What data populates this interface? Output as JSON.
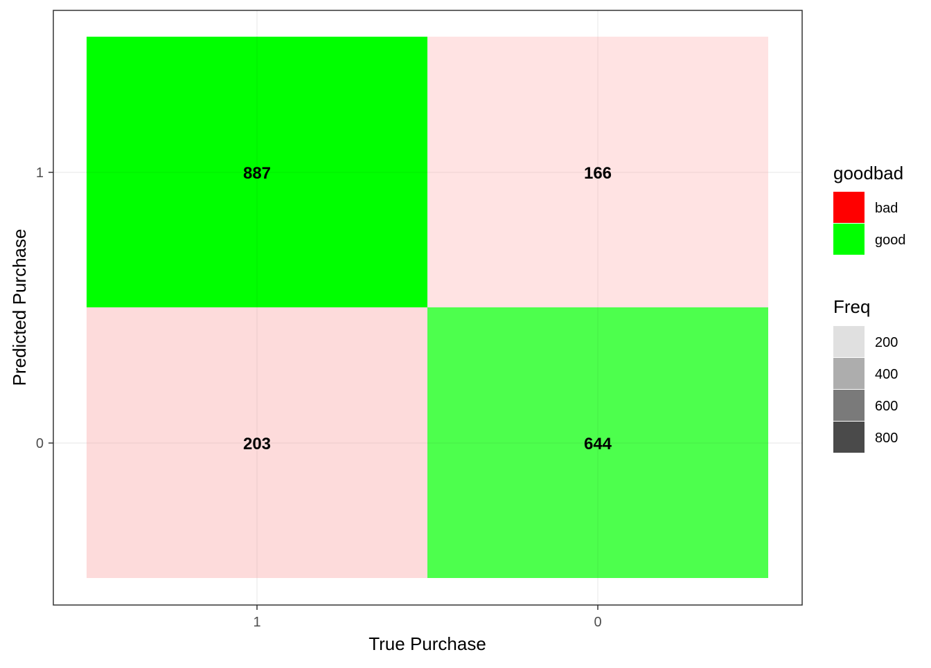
{
  "chart_data": {
    "type": "heatmap",
    "title": "",
    "xlabel": "True Purchase",
    "ylabel": "Predicted Purchase",
    "x_categories": [
      "1",
      "0"
    ],
    "y_categories": [
      "1",
      "0"
    ],
    "grid": true,
    "legend_position": "right",
    "cells": [
      {
        "true": "1",
        "predicted": "1",
        "freq": 887,
        "goodbad": "good"
      },
      {
        "true": "0",
        "predicted": "1",
        "freq": 166,
        "goodbad": "bad"
      },
      {
        "true": "1",
        "predicted": "0",
        "freq": 203,
        "goodbad": "bad"
      },
      {
        "true": "0",
        "predicted": "0",
        "freq": 644,
        "goodbad": "good"
      }
    ],
    "fill_legend": {
      "title": "goodbad",
      "entries": [
        {
          "label": "bad",
          "color": "#ff0000"
        },
        {
          "label": "good",
          "color": "#00ff00"
        }
      ]
    },
    "alpha_legend": {
      "title": "Freq",
      "entries": [
        {
          "label": "200",
          "color": "#e0e0e0"
        },
        {
          "label": "400",
          "color": "#adadad"
        },
        {
          "label": "600",
          "color": "#7a7a7a"
        },
        {
          "label": "800",
          "color": "#4a4a4a"
        }
      ]
    },
    "cell_colors": {
      "887": "#00ff00",
      "166": "#ffe3e3",
      "203": "#fddbdb",
      "644": "#4dff4d"
    }
  }
}
